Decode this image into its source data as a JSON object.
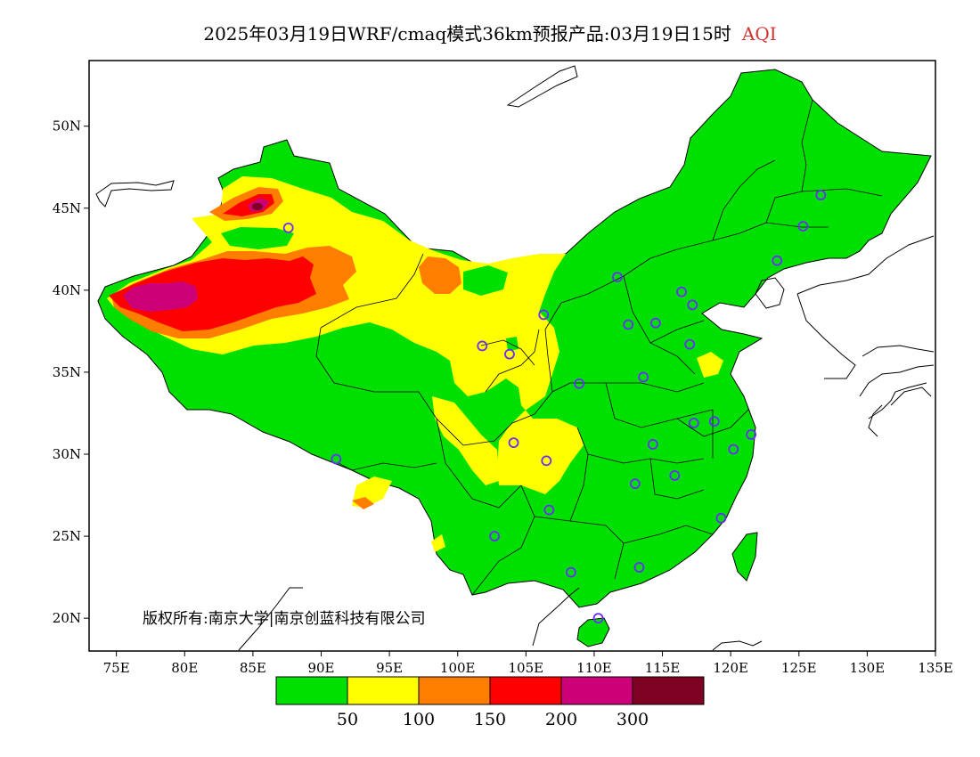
{
  "title": {
    "prefix": "2025年03月19日WRF/cmaq模式36km预报产品:03月19日15时",
    "variable": "AQI",
    "variable_color": "#d33333"
  },
  "axes": {
    "lon_min": 73,
    "lon_max": 135,
    "lat_min": 18,
    "lat_max": 54,
    "x_ticks": [
      {
        "value": 75,
        "label": "75E"
      },
      {
        "value": 80,
        "label": "80E"
      },
      {
        "value": 85,
        "label": "85E"
      },
      {
        "value": 90,
        "label": "90E"
      },
      {
        "value": 95,
        "label": "95E"
      },
      {
        "value": 100,
        "label": "100E"
      },
      {
        "value": 105,
        "label": "105E"
      },
      {
        "value": 110,
        "label": "110E"
      },
      {
        "value": 115,
        "label": "115E"
      },
      {
        "value": 120,
        "label": "120E"
      },
      {
        "value": 125,
        "label": "125E"
      },
      {
        "value": 130,
        "label": "130E"
      },
      {
        "value": 135,
        "label": "135E"
      }
    ],
    "y_ticks": [
      {
        "value": 20,
        "label": "20N"
      },
      {
        "value": 25,
        "label": "25N"
      },
      {
        "value": 30,
        "label": "30N"
      },
      {
        "value": 35,
        "label": "35N"
      },
      {
        "value": 40,
        "label": "40N"
      },
      {
        "value": 45,
        "label": "45N"
      },
      {
        "value": 50,
        "label": "50N"
      }
    ]
  },
  "legend": {
    "colors": [
      "#00e000",
      "#ffff00",
      "#ff7e00",
      "#ff0000",
      "#cc0077",
      "#7e0023"
    ],
    "labels": [
      "50",
      "100",
      "150",
      "200",
      "300"
    ]
  },
  "copyright": "版权所有:南京大学|南京创蓝科技有限公司",
  "cities": [
    [
      87.6,
      43.8
    ],
    [
      91.1,
      29.7
    ],
    [
      101.8,
      36.6
    ],
    [
      103.8,
      36.1
    ],
    [
      106.3,
      38.5
    ],
    [
      111.7,
      40.8
    ],
    [
      116.4,
      39.9
    ],
    [
      117.2,
      39.1
    ],
    [
      112.5,
      37.9
    ],
    [
      114.5,
      38.0
    ],
    [
      117.0,
      36.7
    ],
    [
      113.6,
      34.7
    ],
    [
      108.9,
      34.3
    ],
    [
      104.1,
      30.7
    ],
    [
      106.5,
      29.6
    ],
    [
      106.7,
      26.6
    ],
    [
      102.7,
      25.0
    ],
    [
      108.3,
      22.8
    ],
    [
      113.3,
      23.1
    ],
    [
      110.3,
      20.0
    ],
    [
      113.0,
      28.2
    ],
    [
      114.3,
      30.6
    ],
    [
      115.9,
      28.7
    ],
    [
      117.3,
      31.9
    ],
    [
      118.8,
      32.0
    ],
    [
      120.2,
      30.3
    ],
    [
      121.5,
      31.2
    ],
    [
      119.3,
      26.1
    ],
    [
      123.4,
      41.8
    ],
    [
      125.3,
      43.9
    ],
    [
      126.6,
      45.8
    ]
  ]
}
